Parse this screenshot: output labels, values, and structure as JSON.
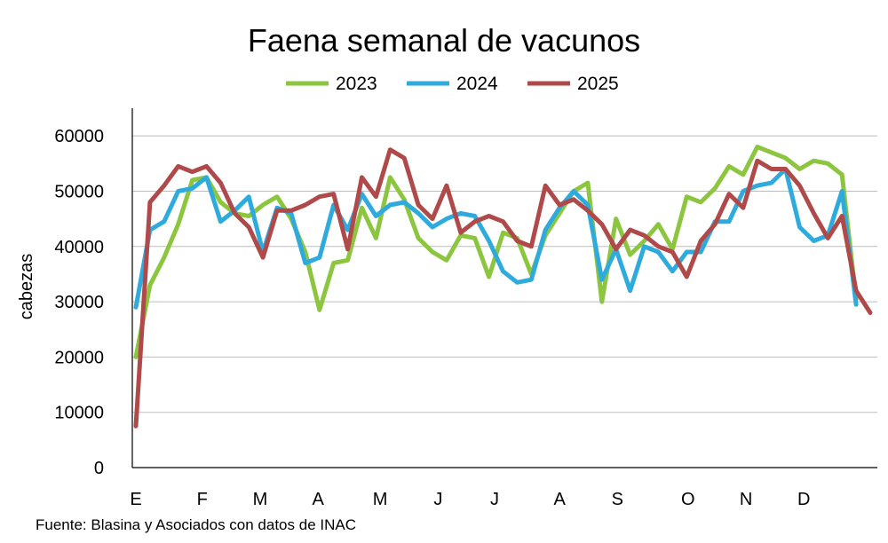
{
  "source": "Fuente: Blasina y Asociados con datos de INAC",
  "chart_data": {
    "type": "line",
    "title": "Faena semanal de vacunos",
    "ylabel": "cabezas",
    "xlabel": "",
    "ylim": [
      0,
      65000
    ],
    "yticks": [
      0,
      10000,
      20000,
      30000,
      40000,
      50000,
      60000
    ],
    "ytick_labels": [
      "0",
      "10000",
      "20000",
      "30000",
      "40000",
      "50000",
      "60000"
    ],
    "grid": "horizontal",
    "legend": "top",
    "x_week_range": [
      1,
      53
    ],
    "month_labels": [
      {
        "label": "E",
        "week": 1
      },
      {
        "label": "F",
        "week": 5.7
      },
      {
        "label": "M",
        "week": 9.8
      },
      {
        "label": "A",
        "week": 13.9
      },
      {
        "label": "M",
        "week": 18.3
      },
      {
        "label": "J",
        "week": 22.4
      },
      {
        "label": "J",
        "week": 26.4
      },
      {
        "label": "A",
        "week": 31
      },
      {
        "label": "S",
        "week": 35.1
      },
      {
        "label": "O",
        "week": 40.1
      },
      {
        "label": "N",
        "week": 44.2
      },
      {
        "label": "D",
        "week": 48.3
      }
    ],
    "series": [
      {
        "name": "2023",
        "color": "#8cc63f",
        "values": [
          20000,
          33000,
          38000,
          44000,
          52000,
          52500,
          48000,
          46000,
          45500,
          47500,
          49000,
          45000,
          39000,
          28500,
          37000,
          37500,
          47000,
          41500,
          52500,
          48500,
          41500,
          39000,
          37500,
          42000,
          41500,
          34500,
          42500,
          41500,
          35000,
          42000,
          46000,
          50000,
          51500,
          30000,
          45000,
          38500,
          41000,
          44000,
          39500,
          49000,
          48000,
          50500,
          54500,
          53000,
          58000,
          57000,
          56000,
          54000,
          55500,
          55000,
          53000,
          30500
        ]
      },
      {
        "name": "2024",
        "color": "#2eaadc",
        "values": [
          29000,
          43000,
          44500,
          50000,
          50500,
          52500,
          44500,
          46500,
          49000,
          39000,
          47000,
          46000,
          37000,
          38000,
          47500,
          43000,
          49500,
          45500,
          47500,
          48000,
          46000,
          43500,
          45000,
          46000,
          45500,
          41000,
          35500,
          33500,
          34000,
          43000,
          47000,
          50000,
          47500,
          34000,
          39500,
          32000,
          40000,
          39000,
          35500,
          39000,
          39000,
          44500,
          44500,
          50000,
          51000,
          51500,
          54000,
          43500,
          41000,
          42000,
          50000,
          29500
        ]
      },
      {
        "name": "2025",
        "color": "#b04a4a",
        "values": [
          7500,
          48000,
          51000,
          54500,
          53500,
          54500,
          51500,
          46000,
          43500,
          38000,
          46500,
          46500,
          47500,
          49000,
          49500,
          39500,
          52500,
          49000,
          57500,
          56000,
          47500,
          45000,
          51000,
          42500,
          44500,
          45500,
          44500,
          41000,
          40000,
          51000,
          47500,
          48500,
          46500,
          44000,
          39500,
          43000,
          42000,
          40000,
          39000,
          34500,
          41000,
          44000,
          49500,
          47000,
          55500,
          54000,
          54000,
          51000,
          46000,
          41500,
          45500,
          32000,
          28000
        ]
      }
    ]
  }
}
